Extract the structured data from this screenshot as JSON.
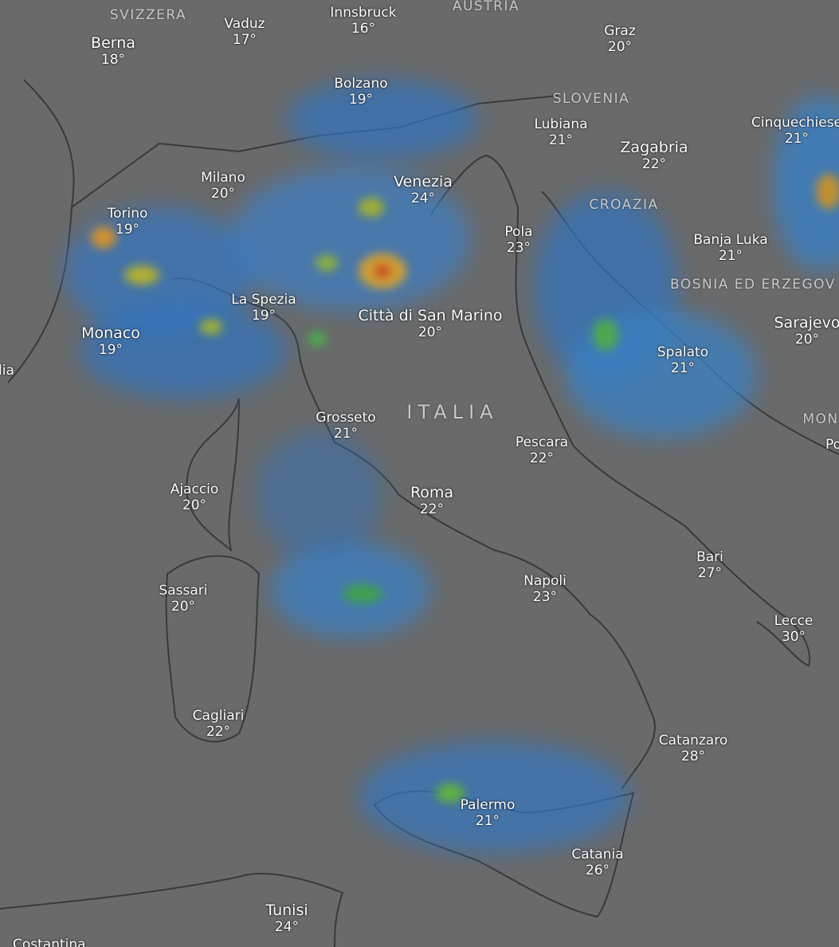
{
  "countries": [
    "SVIZZERA",
    "AUSTRIA",
    "SLOVENIA",
    "CROAZIA",
    "BOSNIA ED ERZEGOV",
    "MON",
    "ITALIA"
  ],
  "cities": [
    {
      "name": "Berna",
      "temp": "18°"
    },
    {
      "name": "Vaduz",
      "temp": "17°"
    },
    {
      "name": "Innsbruck",
      "temp": "16°"
    },
    {
      "name": "Graz",
      "temp": "20°"
    },
    {
      "name": "Bolzano",
      "temp": "19°"
    },
    {
      "name": "Lubiana",
      "temp": "21°"
    },
    {
      "name": "Zagabria",
      "temp": "22°"
    },
    {
      "name": "Cinquechiese",
      "temp": "21°"
    },
    {
      "name": "Milano",
      "temp": "20°"
    },
    {
      "name": "Venezia",
      "temp": "24°"
    },
    {
      "name": "Torino",
      "temp": "19°"
    },
    {
      "name": "Pola",
      "temp": "23°"
    },
    {
      "name": "Banja Luka",
      "temp": "21°"
    },
    {
      "name": "La Spezia",
      "temp": "19°"
    },
    {
      "name": "Città di San Marino",
      "temp": "20°"
    },
    {
      "name": "Monaco",
      "temp": "19°"
    },
    {
      "name": "Sarajevo",
      "temp": "20°"
    },
    {
      "name": "Spalato",
      "temp": "21°"
    },
    {
      "name": "Grosseto",
      "temp": "21°"
    },
    {
      "name": "Pescara",
      "temp": "22°"
    },
    {
      "name": "Ajaccio",
      "temp": "20°"
    },
    {
      "name": "Roma",
      "temp": "22°"
    },
    {
      "name": "Bari",
      "temp": "27°"
    },
    {
      "name": "Napoli",
      "temp": "23°"
    },
    {
      "name": "Sassari",
      "temp": "20°"
    },
    {
      "name": "Lecce",
      "temp": "30°"
    },
    {
      "name": "Cagliari",
      "temp": "22°"
    },
    {
      "name": "Catanzaro",
      "temp": "28°"
    },
    {
      "name": "Palermo",
      "temp": "21°"
    },
    {
      "name": "Catania",
      "temp": "26°"
    },
    {
      "name": "Tunisi",
      "temp": "24°"
    }
  ],
  "partial_labels": [
    "lia",
    "Costantina",
    "Po"
  ]
}
